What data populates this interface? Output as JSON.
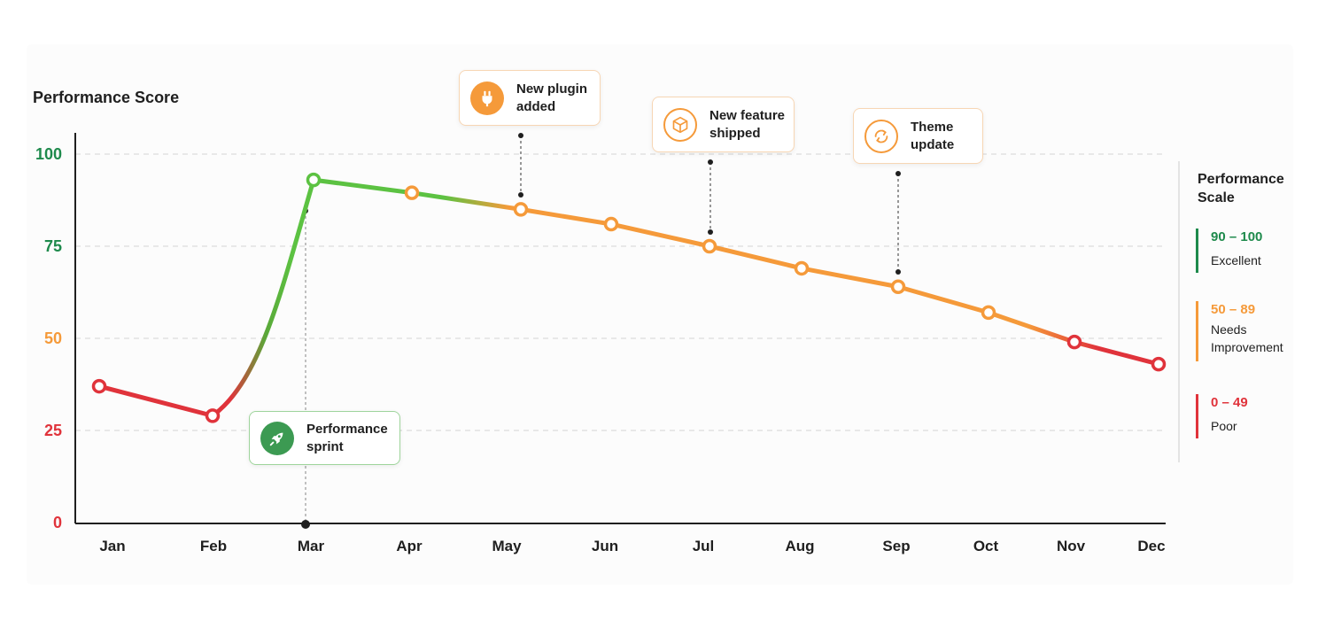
{
  "chart_data": {
    "type": "line",
    "ylabel": "Performance Score",
    "xlabel": "",
    "ylim": [
      0,
      100
    ],
    "y_ticks": [
      0,
      25,
      50,
      75,
      100
    ],
    "categories": [
      "Jan",
      "Feb",
      "Mar",
      "Apr",
      "May",
      "Jun",
      "Jul",
      "Aug",
      "Sep",
      "Oct",
      "Nov",
      "Dec"
    ],
    "series": [
      {
        "values": [
          37,
          29,
          93,
          89.5,
          85,
          81,
          75,
          69,
          64,
          57,
          49,
          43
        ]
      }
    ],
    "grid": "horizontal dashed",
    "annotations": [
      {
        "label": "Performance sprint",
        "month": "Mar",
        "icon": "rocket-icon",
        "color": "#3c9a52"
      },
      {
        "label": "New plugin added",
        "month": "May",
        "icon": "plug-icon",
        "color": "#f59a3a"
      },
      {
        "label": "New feature shipped",
        "month": "Jul",
        "icon": "cube-icon",
        "color": "#f59a3a"
      },
      {
        "label": "Theme update",
        "month": "Sep",
        "icon": "refresh-icon",
        "color": "#f59a3a"
      }
    ],
    "legend": {
      "title": "Performance Scale",
      "placement": "right",
      "items": [
        {
          "range": "90 – 100",
          "label": "Excellent",
          "color": "#1e8a4c"
        },
        {
          "range": "50 – 89",
          "label": "Needs Improvement",
          "color": "#f59a3a"
        },
        {
          "range": "0 – 49",
          "label": "Poor",
          "color": "#e0333b"
        }
      ]
    },
    "colors": {
      "excellent": "#1e8a4c",
      "good_line": "#5cc242",
      "needs": "#f59a3a",
      "poor": "#e0333b"
    }
  }
}
